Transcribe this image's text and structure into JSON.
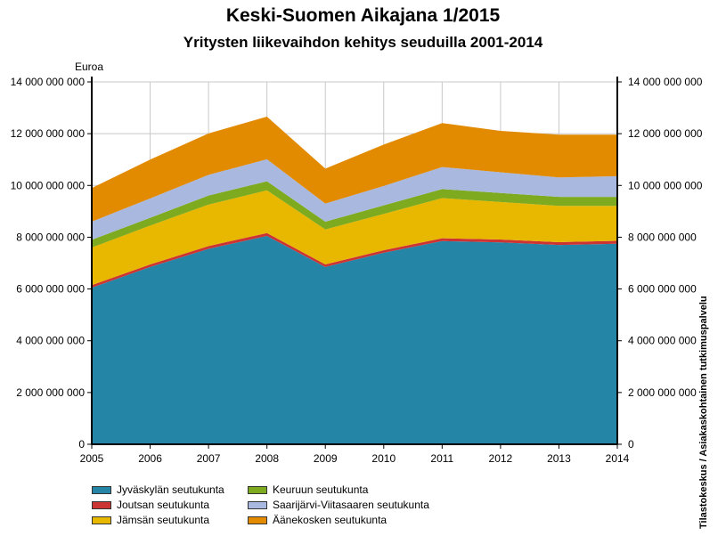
{
  "chart_data": {
    "type": "area",
    "stacked": true,
    "title": "Keski-Suomen Aikajana 1/2015",
    "subtitle": "Yritysten liikevaihdon kehitys seuduilla 2001-2014",
    "ylabel": "Euroa",
    "source": "Tilastokeskus / Asiakaskohtainen tutkimuspalvelu",
    "x": [
      "2005",
      "2006",
      "2007",
      "2008",
      "2009",
      "2010",
      "2011",
      "2012",
      "2013",
      "2014"
    ],
    "ylim": [
      0,
      14000000000
    ],
    "yticks": [
      0,
      2000000000,
      4000000000,
      6000000000,
      8000000000,
      10000000000,
      12000000000,
      14000000000
    ],
    "ytick_labels": [
      "0",
      "2 000 000 000",
      "4 000 000 000",
      "6 000 000 000",
      "8 000 000 000",
      "10 000 000 000",
      "12 000 000 000",
      "14 000 000 000"
    ],
    "grid": true,
    "legend_position": "bottom",
    "series": [
      {
        "name": "Jyväskylän seutukunta",
        "color": "#2485a6",
        "values": [
          6050000000,
          6850000000,
          7550000000,
          8050000000,
          6850000000,
          7400000000,
          7850000000,
          7800000000,
          7700000000,
          7750000000
        ]
      },
      {
        "name": "Joutsan seutukunta",
        "color": "#cc3333",
        "values": [
          100000000,
          100000000,
          110000000,
          110000000,
          100000000,
          100000000,
          110000000,
          110000000,
          110000000,
          110000000
        ]
      },
      {
        "name": "Jämsän seutukunta",
        "color": "#e8b800",
        "values": [
          1450000000,
          1500000000,
          1600000000,
          1650000000,
          1350000000,
          1400000000,
          1550000000,
          1450000000,
          1400000000,
          1350000000
        ]
      },
      {
        "name": "Keuruun seutukunta",
        "color": "#7daa1e",
        "values": [
          300000000,
          300000000,
          350000000,
          350000000,
          300000000,
          330000000,
          350000000,
          350000000,
          350000000,
          350000000
        ]
      },
      {
        "name": "Saarijärvi-Viitasaaren seutukunta",
        "color": "#a9b8df",
        "values": [
          700000000,
          750000000,
          800000000,
          850000000,
          700000000,
          750000000,
          850000000,
          800000000,
          750000000,
          800000000
        ]
      },
      {
        "name": "Äänekosken seutukunta",
        "color": "#e28a00",
        "values": [
          1300000000,
          1500000000,
          1600000000,
          1650000000,
          1350000000,
          1600000000,
          1700000000,
          1600000000,
          1650000000,
          1600000000
        ]
      }
    ]
  }
}
